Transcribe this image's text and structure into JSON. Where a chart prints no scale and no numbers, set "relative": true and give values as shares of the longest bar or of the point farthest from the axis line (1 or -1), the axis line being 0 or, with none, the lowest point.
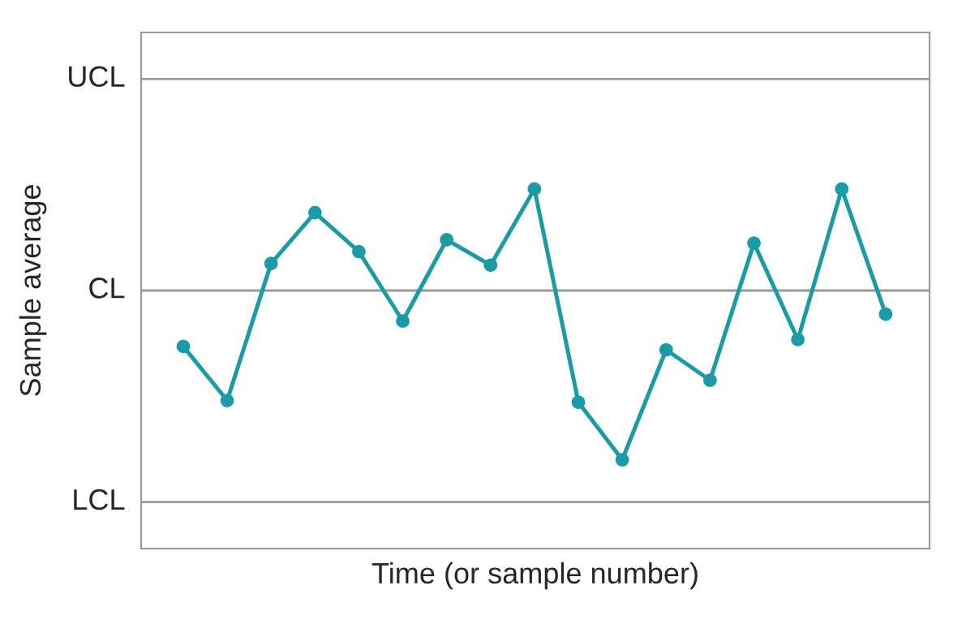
{
  "chart_data": {
    "type": "line",
    "xlabel": "Time (or sample number)",
    "ylabel": "Sample average",
    "relative": true,
    "categories": [
      null,
      null,
      null,
      null,
      null,
      null,
      null,
      null,
      null,
      null,
      null,
      null,
      null,
      null,
      null,
      null,
      null
    ],
    "series": [
      {
        "color": "#1a9ba5",
        "values": [
          -0.33,
          -0.65,
          0.16,
          0.46,
          0.23,
          -0.18,
          0.3,
          0.15,
          0.6,
          -0.66,
          -1,
          -0.35,
          -0.53,
          0.28,
          -0.29,
          0.6,
          -0.14
        ]
      }
    ],
    "ref_lines": [
      {
        "axis": "y",
        "value": 1.25,
        "label": "UCL",
        "color": "#999999",
        "line_style": "solid"
      },
      {
        "axis": "y",
        "value": 0,
        "label": "CL",
        "color": "#999999",
        "line_style": "solid"
      },
      {
        "axis": "y",
        "value": -1.25,
        "label": "LCL",
        "color": "#999999",
        "line_style": "solid"
      }
    ],
    "marker": "circle",
    "line_style": "solid",
    "tick_labels": false,
    "legend": false
  }
}
